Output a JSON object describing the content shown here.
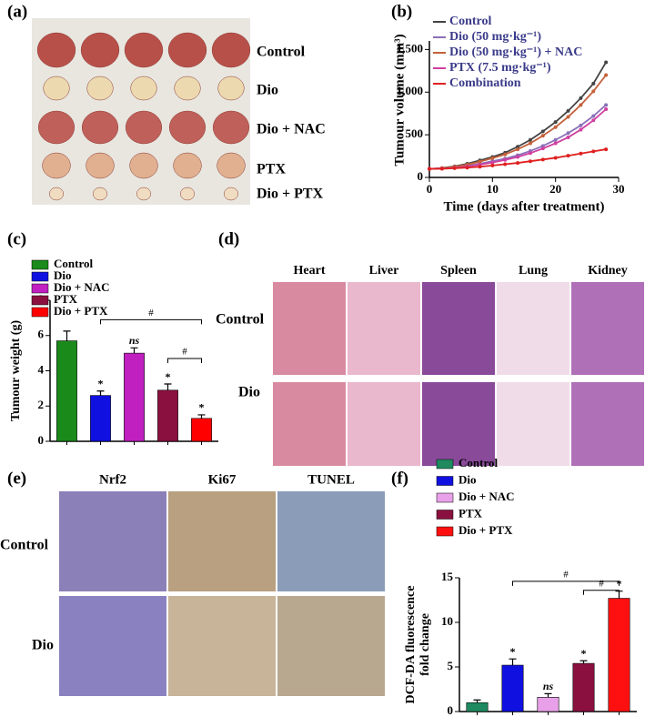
{
  "panels": {
    "labels": [
      "(a)",
      "(b)",
      "(c)",
      "(d)",
      "(e)",
      "(f)"
    ]
  },
  "photo_a": {
    "rows": [
      "Control",
      "Dio",
      "Dio + NAC",
      "PTX",
      "Dio + PTX"
    ]
  },
  "histology_d": {
    "columns": [
      "Heart",
      "Liver",
      "Spleen",
      "Lung",
      "Kidney"
    ],
    "rows": [
      "Control",
      "Dio"
    ]
  },
  "ihc_e": {
    "columns": [
      "Nrf2",
      "Ki67",
      "TUNEL"
    ],
    "rows": [
      "Control",
      "Dio"
    ]
  },
  "chart_data": [
    {
      "type": "line",
      "xlabel": "Time (days after treatment)",
      "ylabel": "Tumour volume (mm³)",
      "x": [
        0,
        2,
        4,
        6,
        8,
        10,
        12,
        14,
        16,
        18,
        20,
        22,
        24,
        26,
        28
      ],
      "series": [
        {
          "name": "Control",
          "color": "#444444",
          "values": [
            100,
            110,
            130,
            160,
            200,
            240,
            290,
            360,
            440,
            540,
            650,
            780,
            930,
            1100,
            1350
          ]
        },
        {
          "name": "Dio (50 mg·kg⁻¹)",
          "color": "#8a70b8",
          "values": [
            100,
            105,
            115,
            135,
            160,
            190,
            220,
            260,
            310,
            370,
            440,
            520,
            610,
            720,
            850
          ]
        },
        {
          "name": "Dio (50 mg·kg⁻¹) + NAC",
          "color": "#c4603a",
          "values": [
            100,
            108,
            125,
            150,
            185,
            225,
            270,
            330,
            400,
            490,
            590,
            710,
            850,
            1010,
            1200
          ]
        },
        {
          "name": "PTX (7.5 mg·kg⁻¹)",
          "color": "#d040a0",
          "values": [
            100,
            104,
            112,
            128,
            150,
            175,
            205,
            240,
            285,
            340,
            400,
            470,
            560,
            670,
            800
          ]
        },
        {
          "name": "Combination",
          "color": "#e02020",
          "values": [
            100,
            102,
            108,
            115,
            125,
            140,
            155,
            170,
            190,
            210,
            230,
            255,
            280,
            305,
            330
          ]
        }
      ],
      "xlim": [
        0,
        30
      ],
      "xticks": [
        0,
        10,
        20,
        30
      ],
      "ylim": [
        0,
        1600
      ],
      "yticks": [
        0,
        500,
        {
          "value": 1000,
          "label": "1,000"
        },
        {
          "value": 1500,
          "label": "1,500"
        }
      ]
    },
    {
      "type": "bar",
      "ylabel": [
        "Tumour weight (g)"
      ],
      "categories": [
        "Control",
        "Dio",
        "Dio + NAC",
        "PTX",
        "Dio + PTX"
      ],
      "values": [
        5.7,
        2.6,
        5.0,
        2.9,
        1.3
      ],
      "errors": [
        0.55,
        0.25,
        0.3,
        0.35,
        0.2
      ],
      "colors": [
        "#1a8a1a",
        "#1010e0",
        "#c020c0",
        "#8a1040",
        "#ff0000"
      ],
      "significance": [
        null,
        "*",
        "ns",
        "*",
        "*"
      ],
      "bracket_labels": [
        "#",
        "#"
      ],
      "ylim": [
        0,
        8
      ],
      "yticks": [
        0,
        2,
        4,
        6,
        8
      ]
    },
    {
      "type": "bar",
      "ylabel": [
        "DCF-DA fluorescence",
        "fold change"
      ],
      "categories": [
        "Control",
        "Dio",
        "Dio + NAC",
        "PTX",
        "Dio + PTX"
      ],
      "values": [
        1.0,
        5.2,
        1.6,
        5.4,
        12.7
      ],
      "errors": [
        0.3,
        0.7,
        0.4,
        0.3,
        0.8
      ],
      "colors": [
        "#1f8a60",
        "#1010e0",
        "#e8a0e8",
        "#8a1040",
        "#ff1010"
      ],
      "significance": [
        null,
        "*",
        "ns",
        "*",
        "*"
      ],
      "bracket_labels": [
        "#",
        "#"
      ],
      "ylim": [
        0,
        15
      ],
      "yticks": [
        0,
        5,
        10,
        15
      ]
    }
  ]
}
